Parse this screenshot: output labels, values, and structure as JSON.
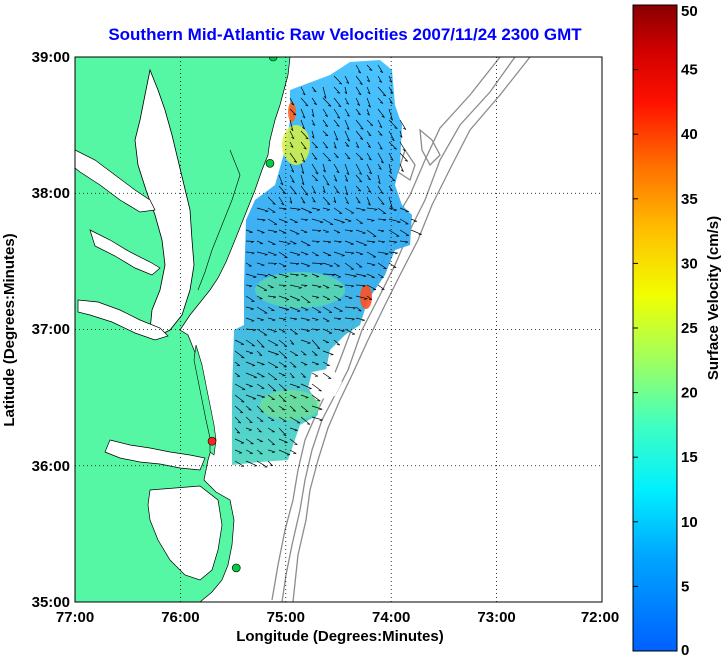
{
  "title": "Southern Mid-Atlantic Raw Velocities 2007/11/24 2300 GMT",
  "xlabel": "Longitude (Degrees:Minutes)",
  "ylabel": "Latitude (Degrees:Minutes)",
  "x_ticks": [
    "77:00",
    "76:00",
    "75:00",
    "74:00",
    "73:00",
    "72:00"
  ],
  "y_ticks": [
    "39:00",
    "38:00",
    "37:00",
    "36:00",
    "35:00"
  ],
  "colorbar": {
    "label": "Surface Velocity (cm/s)",
    "ticks": [
      "0",
      "5",
      "10",
      "15",
      "20",
      "25",
      "30",
      "35",
      "40",
      "45",
      "50"
    ],
    "range": [
      0,
      50
    ]
  },
  "colors": {
    "title": "#0000ff",
    "land": "#55f7a4",
    "bathymetry": "#8c8c8c",
    "station_green": "#00cc44",
    "station_red": "#ff2020"
  },
  "map": {
    "lon_range": [
      -77,
      -72
    ],
    "lat_range": [
      35,
      39
    ],
    "grid": "dotted"
  },
  "stations": [
    {
      "lon": -75.12,
      "lat": 39.0,
      "status": "green"
    },
    {
      "lon": -75.15,
      "lat": 38.22,
      "status": "green"
    },
    {
      "lon": -75.7,
      "lat": 36.18,
      "status": "red"
    },
    {
      "lon": -75.47,
      "lat": 35.25,
      "status": "green"
    }
  ]
}
